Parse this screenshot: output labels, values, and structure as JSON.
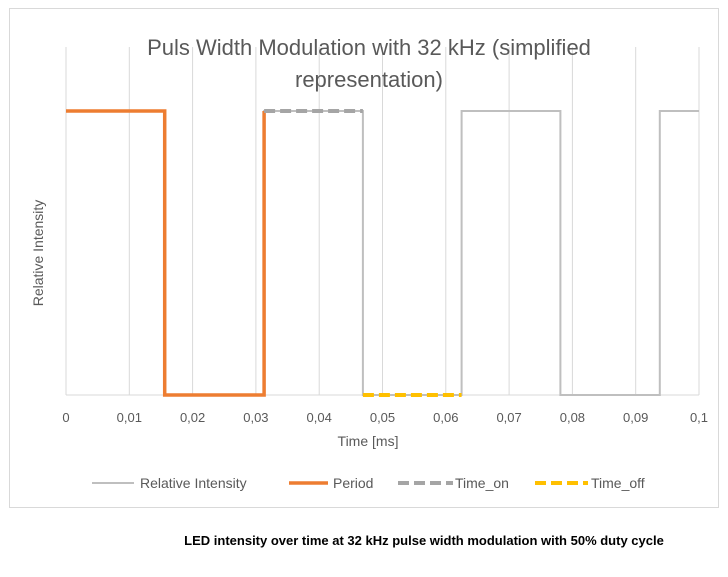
{
  "chart_data": {
    "type": "line",
    "title": "Puls Width Modulation with 32 kHz (simplified representation)",
    "title_lines": [
      "Puls Width Modulation with 32 kHz (simplified",
      "representation)"
    ],
    "xlabel": "Time [ms]",
    "ylabel": "Relative Intensity",
    "xlim": [
      0,
      0.1
    ],
    "ylim": [
      0,
      1
    ],
    "x_ticks": [
      0,
      0.01,
      0.02,
      0.03,
      0.04,
      0.05,
      0.06,
      0.07,
      0.08,
      0.09,
      0.1
    ],
    "x_tick_labels": [
      "0",
      "0,01",
      "0,02",
      "0,03",
      "0,04",
      "0,05",
      "0,06",
      "0,07",
      "0,08",
      "0,09",
      "0,1"
    ],
    "grid": "vertical",
    "legend_position": "bottom",
    "series": [
      {
        "name": "Relative Intensity",
        "color": "#bfbfbf",
        "style": "solid",
        "x": [
          0,
          0.0156,
          0.0156,
          0.0313,
          0.0313,
          0.0469,
          0.0469,
          0.0625,
          0.0625,
          0.0781,
          0.0781,
          0.0938,
          0.0938,
          0.1
        ],
        "y": [
          1,
          1,
          0,
          0,
          1,
          1,
          0,
          0,
          1,
          1,
          0,
          0,
          1,
          1
        ]
      },
      {
        "name": "Period",
        "color": "#ed7d31",
        "style": "solid-thick",
        "x": [
          0,
          0.0156,
          0.0156,
          0.0313,
          0.0313
        ],
        "y": [
          1,
          1,
          0,
          0,
          1
        ]
      },
      {
        "name": "Time_on",
        "color": "#a5a5a5",
        "style": "dashed",
        "x": [
          0.0313,
          0.0469
        ],
        "y": [
          1,
          1
        ]
      },
      {
        "name": "Time_off",
        "color": "#ffc000",
        "style": "dashed",
        "x": [
          0.0469,
          0.0625
        ],
        "y": [
          0,
          0
        ]
      }
    ]
  },
  "caption": "LED intensity over time at 32 kHz pulse width modulation with 50% duty cycle"
}
